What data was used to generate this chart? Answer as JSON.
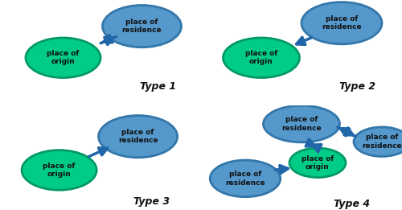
{
  "background_color": "#ffffff",
  "origin_color": "#00cc88",
  "origin_edge_color": "#009966",
  "residence_color": "#5599cc",
  "residence_edge_color": "#3377aa",
  "arrow_color": "#2266aa",
  "text_color": "#111111",
  "label_origin": "place of\norigin",
  "label_residence": "place of\nresidence",
  "type_labels": [
    "Type 1",
    "Type 2",
    "Type 3",
    "Type 4"
  ],
  "font_size_node": 6.5,
  "font_size_type": 9
}
